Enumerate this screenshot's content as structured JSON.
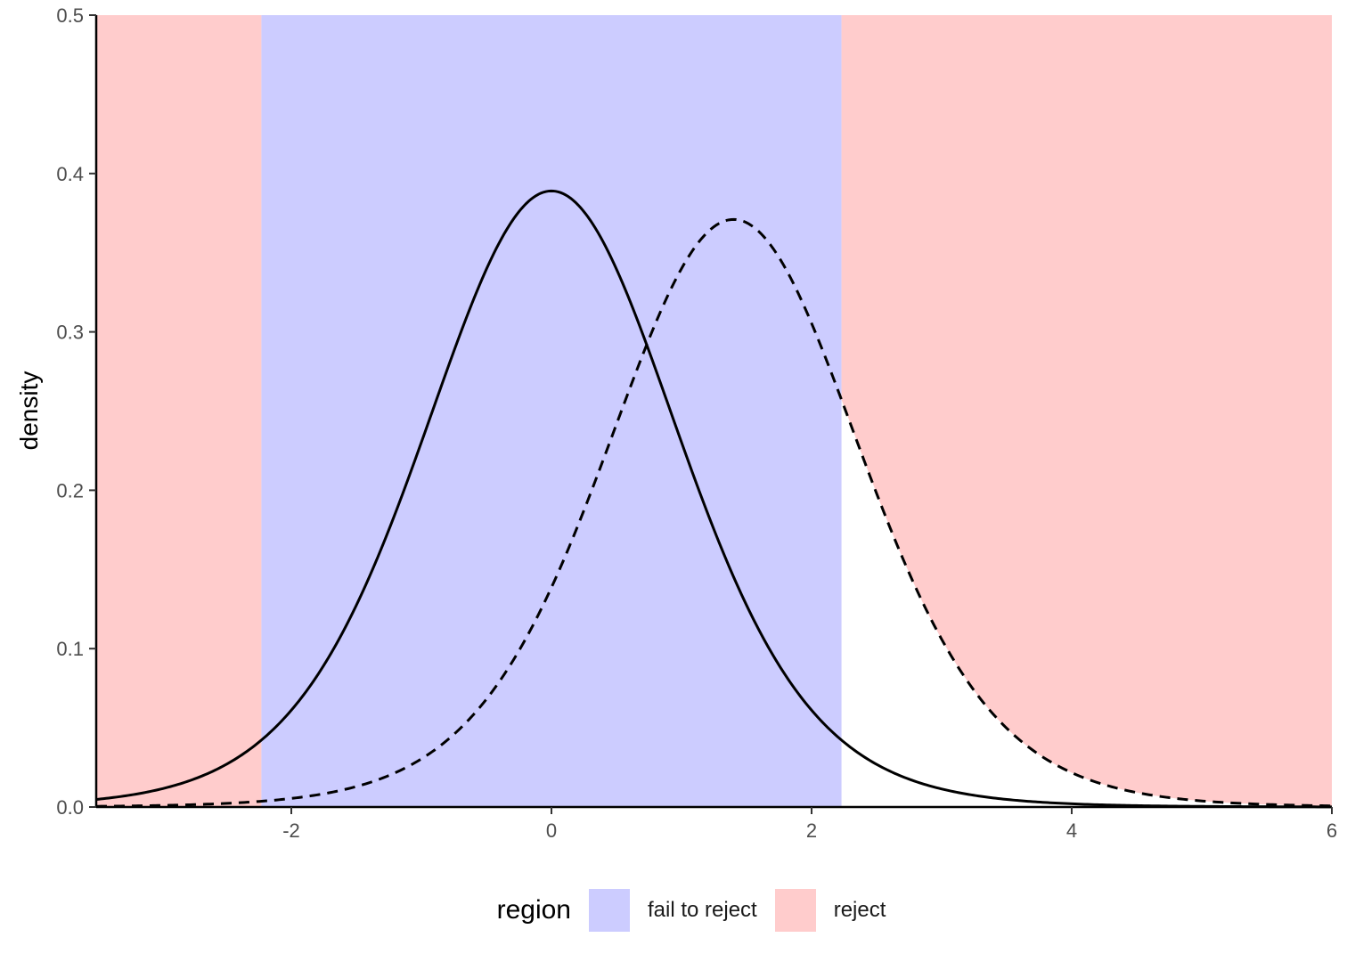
{
  "chart_data": {
    "type": "area",
    "title": "",
    "xlabel": "",
    "ylabel": "density",
    "xlim": [
      -3.5,
      6
    ],
    "ylim": [
      0,
      0.5
    ],
    "x_ticks": [
      -2,
      0,
      2,
      4,
      6
    ],
    "y_ticks": [
      0.0,
      0.1,
      0.2,
      0.3,
      0.4,
      0.5
    ],
    "x_tick_labels": [
      "-2",
      "0",
      "2",
      "4",
      "6"
    ],
    "y_tick_labels": [
      "0.0",
      "0.1",
      "0.2",
      "0.3",
      "0.4",
      "0.5"
    ],
    "critical_values": [
      -2.23,
      2.23
    ],
    "regions": [
      {
        "name": "reject",
        "x_from": -3.5,
        "x_to": -2.23
      },
      {
        "name": "fail to reject",
        "x_from": -2.23,
        "x_to": 2.23
      },
      {
        "name": "reject",
        "x_from": 2.23,
        "x_to": 6
      }
    ],
    "series": [
      {
        "line_style": "solid",
        "distribution": "t",
        "df": 10,
        "shift": 0,
        "peak": 0.389
      },
      {
        "line_style": "dashed",
        "distribution": "t",
        "df": 10,
        "shift": 1.4,
        "peak": 0.371
      }
    ],
    "grid": false,
    "legend_position": "bottom"
  },
  "legend": {
    "title": "region",
    "items": [
      {
        "label": "fail to reject",
        "color": "#ccccff"
      },
      {
        "label": "reject",
        "color": "#ffcccc"
      }
    ]
  },
  "colors": {
    "fail_to_reject": "#ccccff",
    "reject": "#ffcccc",
    "curve": "#000000"
  }
}
